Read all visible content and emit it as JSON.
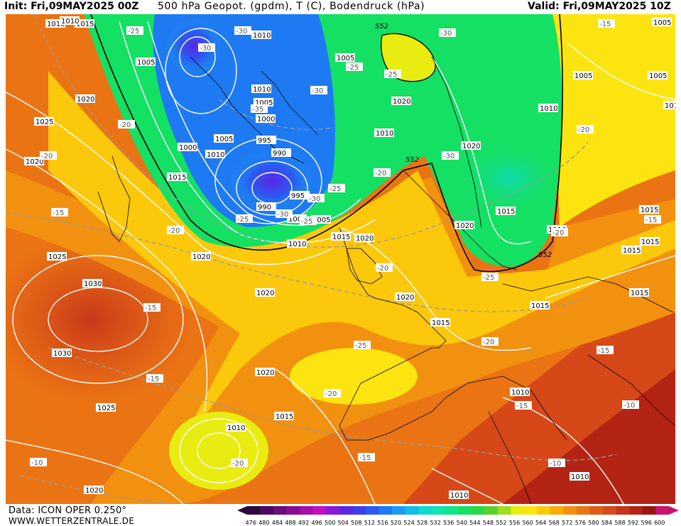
{
  "header": {
    "init": "Init: Fri,09MAY2025 00Z",
    "title": "500 hPa Geopot. (gpdm), T (C), Bodendruck (hPa)",
    "valid": "Valid: Fri,09MAY2025 10Z"
  },
  "footer": {
    "data": "Data: ICON OPER 0.250°",
    "site": "WWW.WETTERZENTRALE.DE"
  },
  "scale": {
    "values": [
      "476",
      "480",
      "484",
      "488",
      "492",
      "496",
      "500",
      "504",
      "508",
      "512",
      "516",
      "520",
      "524",
      "528",
      "532",
      "536",
      "540",
      "544",
      "548",
      "552",
      "556",
      "560",
      "564",
      "568",
      "572",
      "576",
      "580",
      "584",
      "588",
      "592",
      "596",
      "600"
    ],
    "colors": [
      "#2d0a3e",
      "#4b0b5e",
      "#6a0c7c",
      "#8a0c96",
      "#a50ea9",
      "#be12c0",
      "#8a1ad6",
      "#5a27e4",
      "#3b3ef0",
      "#2a5af2",
      "#1e7af2",
      "#1a9bf0",
      "#12bce6",
      "#10d8d0",
      "#10e4b0",
      "#10e48c",
      "#14e064",
      "#2ad846",
      "#5cd02c",
      "#9edc1c",
      "#e8ec10",
      "#fce410",
      "#fcc80c",
      "#f8ac0c",
      "#f29010",
      "#ea7414",
      "#e05c18",
      "#d64818",
      "#c83418",
      "#b42414",
      "#9c1414",
      "#c8146e"
    ]
  },
  "pressure_labels": [
    "1015",
    "1010",
    "1005",
    "1020",
    "1025",
    "1030",
    "1000",
    "995",
    "990"
  ],
  "temp_labels": [
    "-35",
    "-30",
    "-25",
    "-20",
    "-15",
    "-10"
  ],
  "geopot_labels": [
    "552"
  ],
  "map_layers": {
    "background": "#e4781a",
    "hotspot": "#c8381a",
    "gradient_colors": [
      "#2a5af2",
      "#3b3ef0",
      "#10d8b0",
      "#14e064",
      "#5cd02c",
      "#e8ec10",
      "#fcc80c",
      "#f8ac0c",
      "#f29010",
      "#ea7414",
      "#e05c18",
      "#c83418",
      "#9c1414"
    ]
  }
}
